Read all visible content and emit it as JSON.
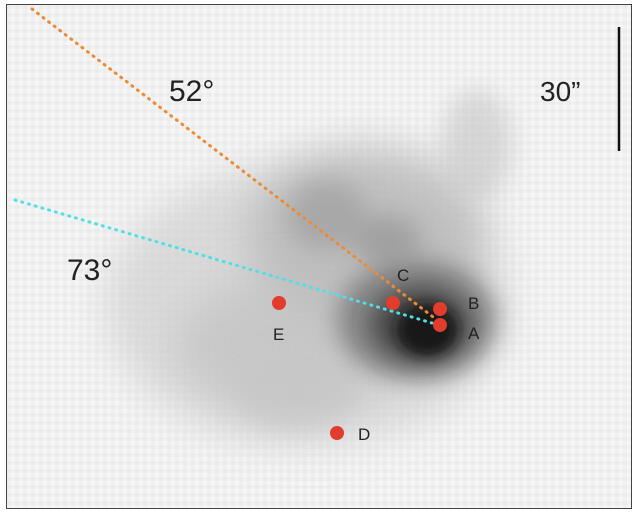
{
  "image": {
    "angle_labels": {
      "orange": "52°",
      "cyan": "73°"
    },
    "scale_bar": {
      "label": "30”"
    },
    "points": [
      {
        "id": "A",
        "label": "A"
      },
      {
        "id": "B",
        "label": "B"
      },
      {
        "id": "C",
        "label": "C"
      },
      {
        "id": "D",
        "label": "D"
      },
      {
        "id": "E",
        "label": "E"
      }
    ],
    "colors": {
      "marker": "#e23c2c",
      "orange_line": "#ee8a34",
      "cyan_line": "#4fe0e6",
      "background": "#f1f1f1",
      "scale_bar": "#111111"
    }
  }
}
